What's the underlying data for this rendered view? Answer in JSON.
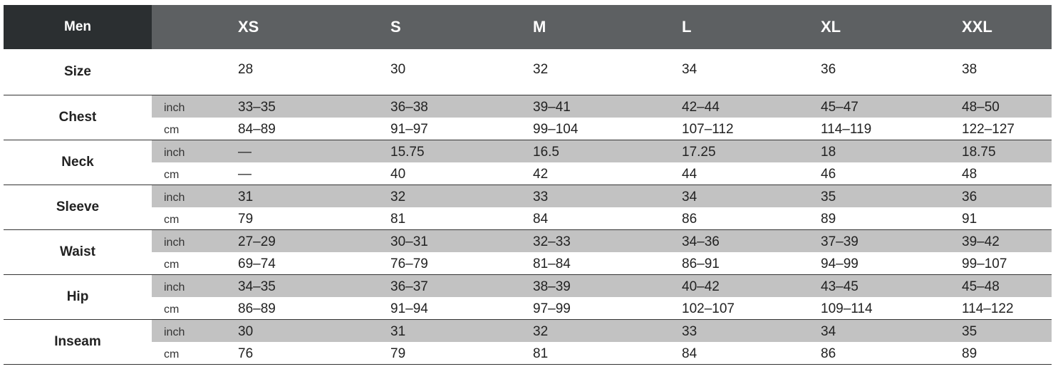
{
  "header": {
    "section": "Men",
    "sizes": [
      "XS",
      "S",
      "M",
      "L",
      "XL",
      "XXL"
    ]
  },
  "size_row": {
    "label": "Size",
    "values": [
      "28",
      "30",
      "32",
      "34",
      "36",
      "38"
    ]
  },
  "measurements": [
    {
      "label": "Chest",
      "inch": {
        "unit": "inch",
        "values": [
          "33–35",
          "36–38",
          "39–41",
          "42–44",
          "45–47",
          "48–50"
        ]
      },
      "cm": {
        "unit": "cm",
        "values": [
          "84–89",
          "91–97",
          "99–104",
          "107–112",
          "114–119",
          "122–127"
        ]
      }
    },
    {
      "label": "Neck",
      "inch": {
        "unit": "inch",
        "values": [
          "—",
          "15.75",
          "16.5",
          "17.25",
          "18",
          "18.75"
        ]
      },
      "cm": {
        "unit": "cm",
        "values": [
          "—",
          "40",
          "42",
          "44",
          "46",
          "48"
        ]
      }
    },
    {
      "label": "Sleeve",
      "inch": {
        "unit": "inch",
        "values": [
          "31",
          "32",
          "33",
          "34",
          "35",
          "36"
        ]
      },
      "cm": {
        "unit": "cm",
        "values": [
          "79",
          "81",
          "84",
          "86",
          "89",
          "91"
        ]
      }
    },
    {
      "label": "Waist",
      "inch": {
        "unit": "inch",
        "values": [
          "27–29",
          "30–31",
          "32–33",
          "34–36",
          "37–39",
          "39–42"
        ]
      },
      "cm": {
        "unit": "cm",
        "values": [
          "69–74",
          "76–79",
          "81–84",
          "86–91",
          "94–99",
          "99–107"
        ]
      }
    },
    {
      "label": "Hip",
      "inch": {
        "unit": "inch",
        "values": [
          "34–35",
          "36–37",
          "38–39",
          "40–42",
          "43–45",
          "45–48"
        ]
      },
      "cm": {
        "unit": "cm",
        "values": [
          "86–89",
          "91–94",
          "97–99",
          "102–107",
          "109–114",
          "114–122"
        ]
      }
    },
    {
      "label": "Inseam",
      "inch": {
        "unit": "inch",
        "values": [
          "30",
          "31",
          "32",
          "33",
          "34",
          "35"
        ]
      },
      "cm": {
        "unit": "cm",
        "values": [
          "76",
          "79",
          "81",
          "84",
          "86",
          "89"
        ]
      }
    }
  ]
}
